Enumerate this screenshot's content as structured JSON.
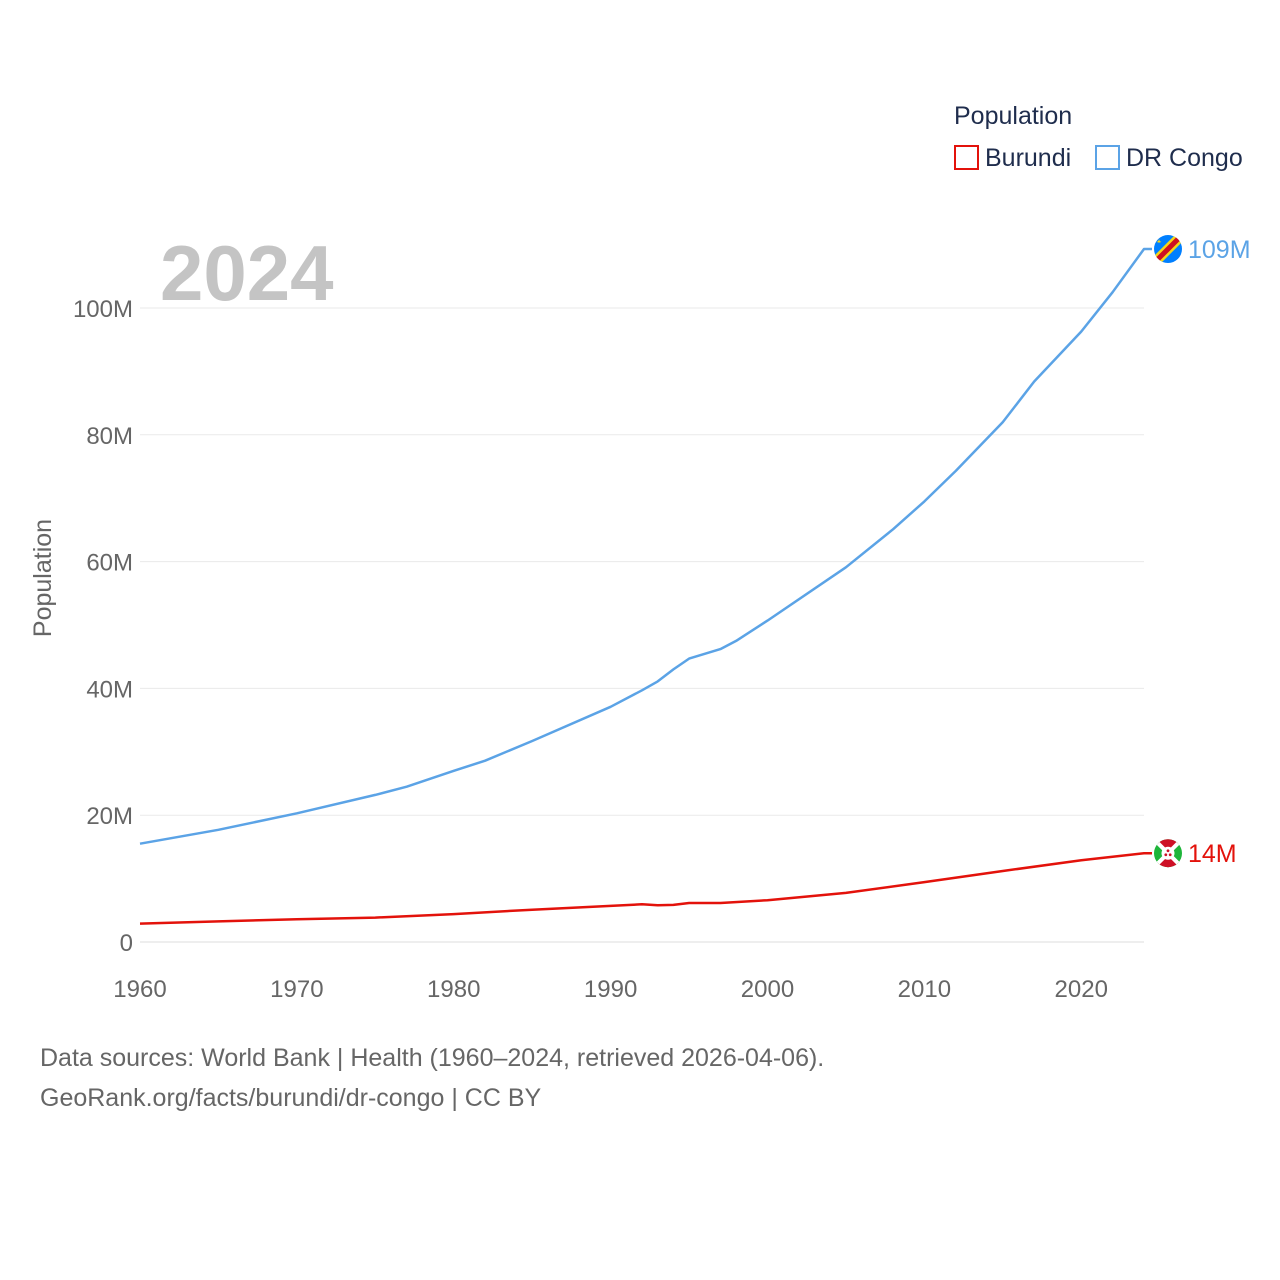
{
  "chart_data": {
    "type": "line",
    "title": "",
    "year_label": "2024",
    "ylabel": "Population",
    "xlabel": "",
    "xlim": [
      1960,
      2024
    ],
    "ylim": [
      0,
      110000000
    ],
    "x_ticks": [
      1960,
      1970,
      1980,
      1990,
      2000,
      2010,
      2020
    ],
    "x_tick_labels": [
      "1960",
      "1970",
      "1980",
      "1990",
      "2000",
      "2010",
      "2020"
    ],
    "y_ticks": [
      0,
      20000000,
      40000000,
      60000000,
      80000000,
      100000000
    ],
    "y_tick_labels": [
      "0",
      "20M",
      "40M",
      "60M",
      "80M",
      "100M"
    ],
    "grid": true,
    "legend": {
      "title": "Population",
      "position": "top-right"
    },
    "series": [
      {
        "name": "Burundi",
        "color": "#e3120b",
        "end_label": "14M",
        "flag_icon": "burundi-flag-icon",
        "x": [
          1960,
          1965,
          1970,
          1975,
          1980,
          1985,
          1990,
          1992,
          1993,
          1994,
          1995,
          1997,
          2000,
          2005,
          2010,
          2015,
          2020,
          2024
        ],
        "values": [
          2900000,
          3250000,
          3600000,
          3850000,
          4400000,
          5100000,
          5700000,
          5950000,
          5800000,
          5850000,
          6150000,
          6150000,
          6600000,
          7750000,
          9450000,
          11200000,
          12900000,
          14000000
        ]
      },
      {
        "name": "DR Congo",
        "color": "#5ba3e6",
        "end_label": "109M",
        "flag_icon": "dr-congo-flag-icon",
        "x": [
          1960,
          1965,
          1970,
          1975,
          1977,
          1980,
          1982,
          1985,
          1990,
          1992,
          1993,
          1994,
          1995,
          1997,
          1998,
          2000,
          2005,
          2008,
          2010,
          2012,
          2015,
          2017,
          2020,
          2022,
          2024
        ],
        "values": [
          15500000,
          17700000,
          20300000,
          23200000,
          24500000,
          27000000,
          28600000,
          31700000,
          37100000,
          39700000,
          41100000,
          43000000,
          44700000,
          46200000,
          47500000,
          50700000,
          59100000,
          65100000,
          69500000,
          74300000,
          82000000,
          88400000,
          96300000,
          102500000,
          109300000
        ]
      }
    ]
  },
  "footer": {
    "line1": "Data sources: World Bank | Health (1960–2024, retrieved 2026-04-06).",
    "line2": "GeoRank.org/facts/burundi/dr-congo | CC BY"
  }
}
